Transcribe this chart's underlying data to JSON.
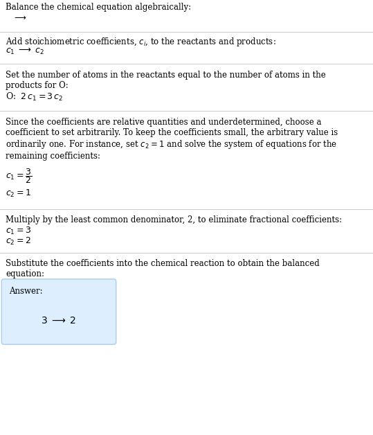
{
  "title": "Balance the chemical equation algebraically:",
  "bg_color": "#ffffff",
  "answer_box_color": "#ddeeff",
  "answer_box_edge_color": "#aaccee",
  "text_color": "#000000",
  "line_color": "#cccccc",
  "sections": [
    {
      "type": "title_arrow",
      "title": "Balance the chemical equation algebraically:",
      "arrow": "$\\longrightarrow$"
    },
    {
      "type": "header_formula",
      "header": "Add stoichiometric coefficients, $c_i$, to the reactants and products:",
      "formula": "$c_1 \\;\\longrightarrow\\; c_2$"
    },
    {
      "type": "header_formula",
      "header": "Set the number of atoms in the reactants equal to the number of atoms in the\nproducts for O:",
      "formula": "O: $\\;2\\,c_1 = 3\\,c_2$"
    },
    {
      "type": "header_multiline_formula",
      "header": "Since the coefficients are relative quantities and underdetermined, choose a\ncoefficient to set arbitrarily. To keep the coefficients small, the arbitrary value is\nordinarily one. For instance, set $c_2 = 1$ and solve the system of equations for the\nremaining coefficients:",
      "formulas": [
        "$c_1 = \\dfrac{3}{2}$",
        "$c_2 = 1$"
      ]
    },
    {
      "type": "header_multiline_formula",
      "header": "Multiply by the least common denominator, 2, to eliminate fractional coefficients:",
      "formulas": [
        "$c_1 = 3$",
        "$c_2 = 2$"
      ]
    },
    {
      "type": "answer",
      "header": "Substitute the coefficients into the chemical reaction to obtain the balanced\nequation:",
      "answer_label": "Answer:",
      "answer_formula": "$3 \\;\\longrightarrow\\; 2$"
    }
  ]
}
